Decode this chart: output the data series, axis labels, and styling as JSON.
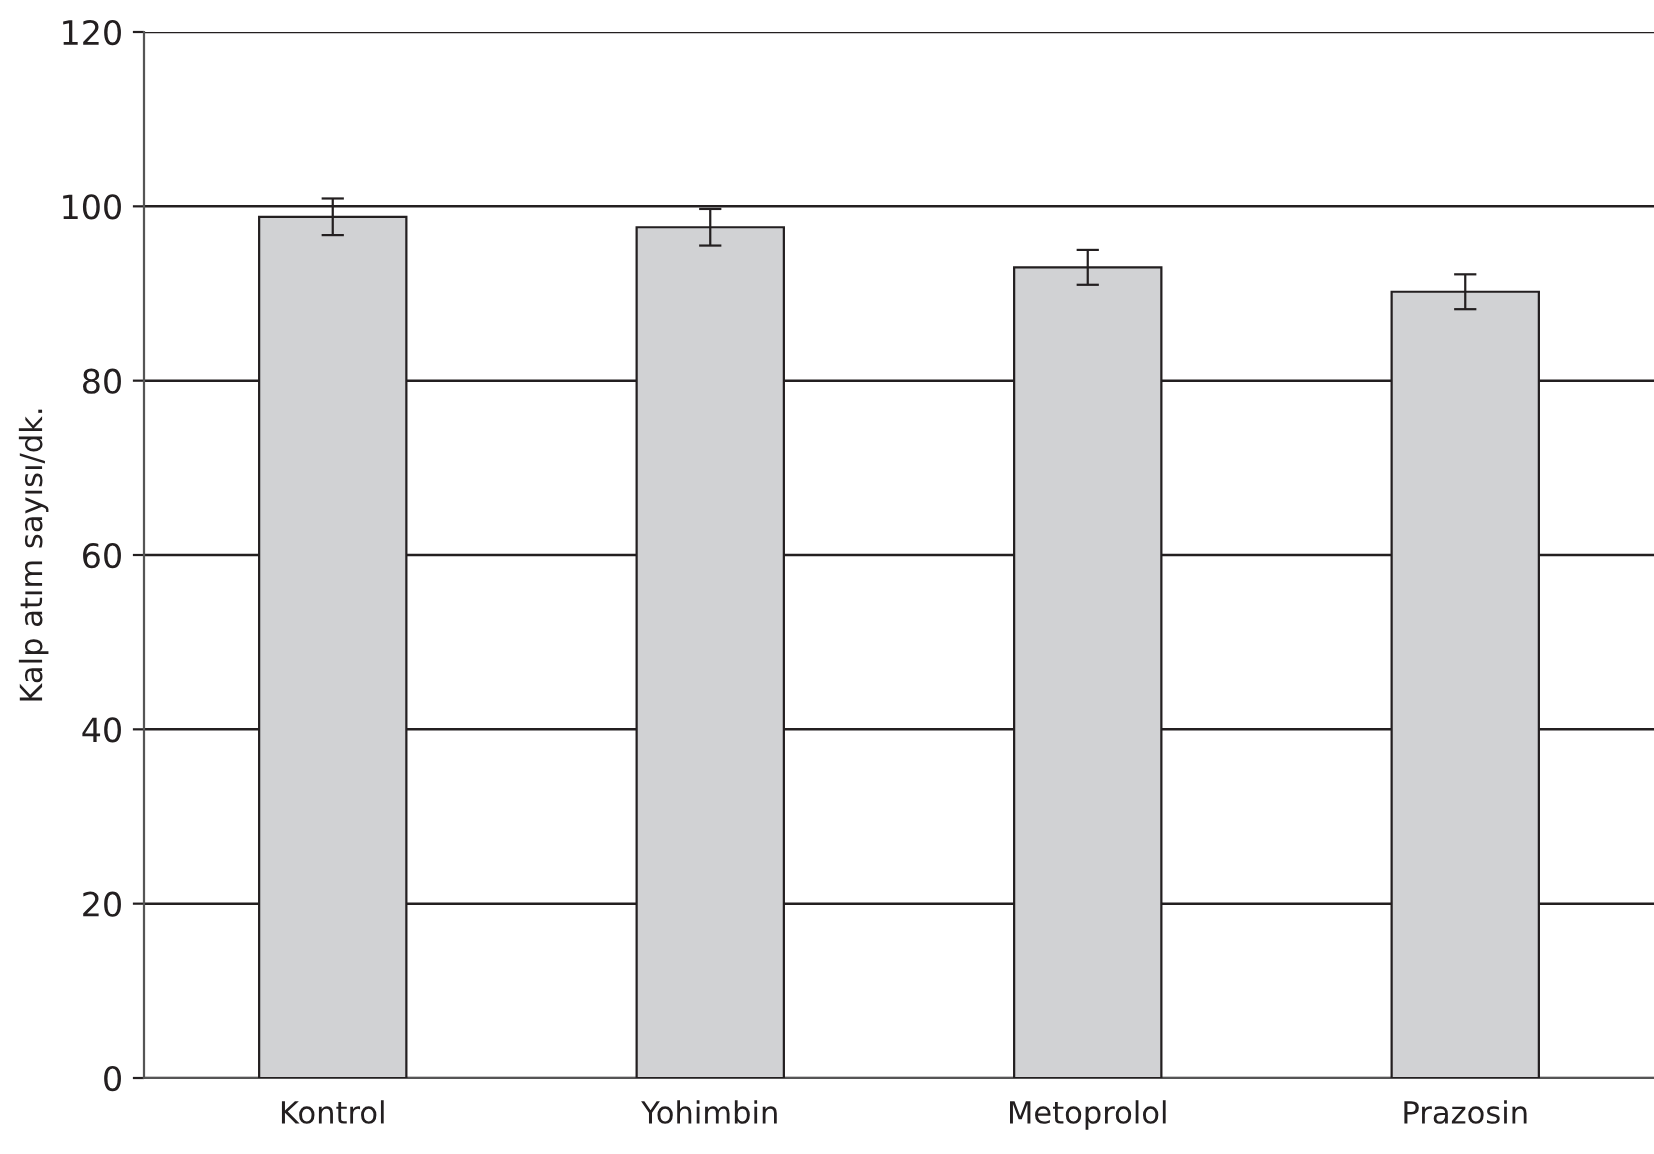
{
  "chart_data": {
    "type": "bar",
    "ylabel": "Kalp atım sayısı/dk.",
    "categories": [
      "Kontrol",
      "Yohimbin",
      "Metoprolol",
      "Prazosin"
    ],
    "values": [
      98.8,
      97.6,
      93.0,
      90.2
    ],
    "errors": [
      2.1,
      2.1,
      2.0,
      2.0
    ],
    "color": "#d1d2d4",
    "ylim": [
      0,
      120
    ],
    "yticks": [
      0,
      20,
      40,
      60,
      80,
      100,
      120
    ],
    "grid": "y",
    "legend": false
  }
}
